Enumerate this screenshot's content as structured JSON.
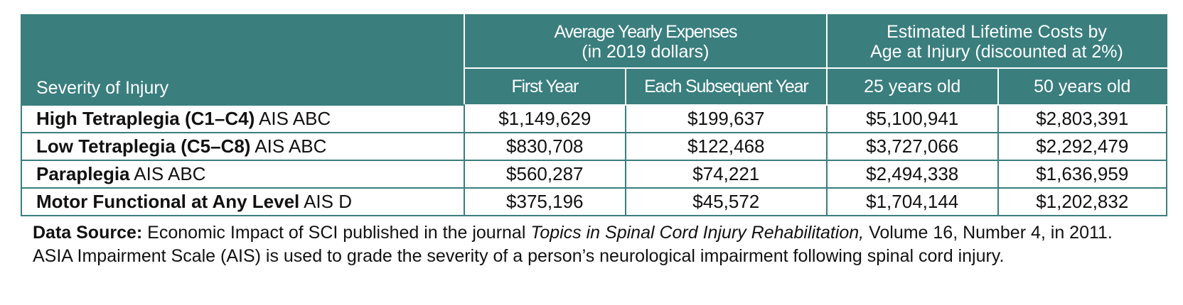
{
  "table": {
    "col_severity": "Severity of Injury",
    "group_yearly_line1": "Average Yearly Expenses",
    "group_yearly_line2": "(in 2019 dollars)",
    "group_lifetime_line1": "Estimated Lifetime Costs by",
    "group_lifetime_line2": "Age at Injury (discounted at 2%)",
    "col_first_year": "First Year",
    "col_subsequent_year": "Each Subsequent Year",
    "col_age25": "25 years old",
    "col_age50": "50 years old",
    "rows": [
      {
        "name_bold": "High Tetraplegia (C1–C4)",
        "name_rest": " AIS ABC",
        "first_year": "$1,149,629",
        "subsequent_year": "$199,637",
        "age25": "$5,100,941",
        "age50": "$2,803,391"
      },
      {
        "name_bold": "Low Tetraplegia (C5–C8)",
        "name_rest": " AIS ABC",
        "first_year": "$830,708",
        "subsequent_year": "$122,468",
        "age25": "$3,727,066",
        "age50": "$2,292,479"
      },
      {
        "name_bold": "Paraplegia",
        "name_rest": " AIS ABC",
        "first_year": "$560,287",
        "subsequent_year": "$74,221",
        "age25": "$2,494,338",
        "age50": "$1,636,959"
      },
      {
        "name_bold": "Motor Functional at Any Level",
        "name_rest": " AIS D",
        "first_year": "$375,196",
        "subsequent_year": "$45,572",
        "age25": "$1,704,144",
        "age50": "$1,202,832"
      }
    ]
  },
  "footnote": {
    "source_label": "Data Source:",
    "source_text_before": " Economic Impact of SCI published in the journal ",
    "journal_title": "Topics in Spinal Cord Injury Rehabilitation,",
    "source_text_after": " Volume 16, Number 4, in 2011.",
    "ais_note": "ASIA Impairment Scale (AIS) is used to grade the severity of a person’s neurological impairment following spinal cord injury."
  },
  "colors": {
    "header_bg": "#3a7e7e",
    "header_text": "#ffffff",
    "body_text": "#111111"
  }
}
